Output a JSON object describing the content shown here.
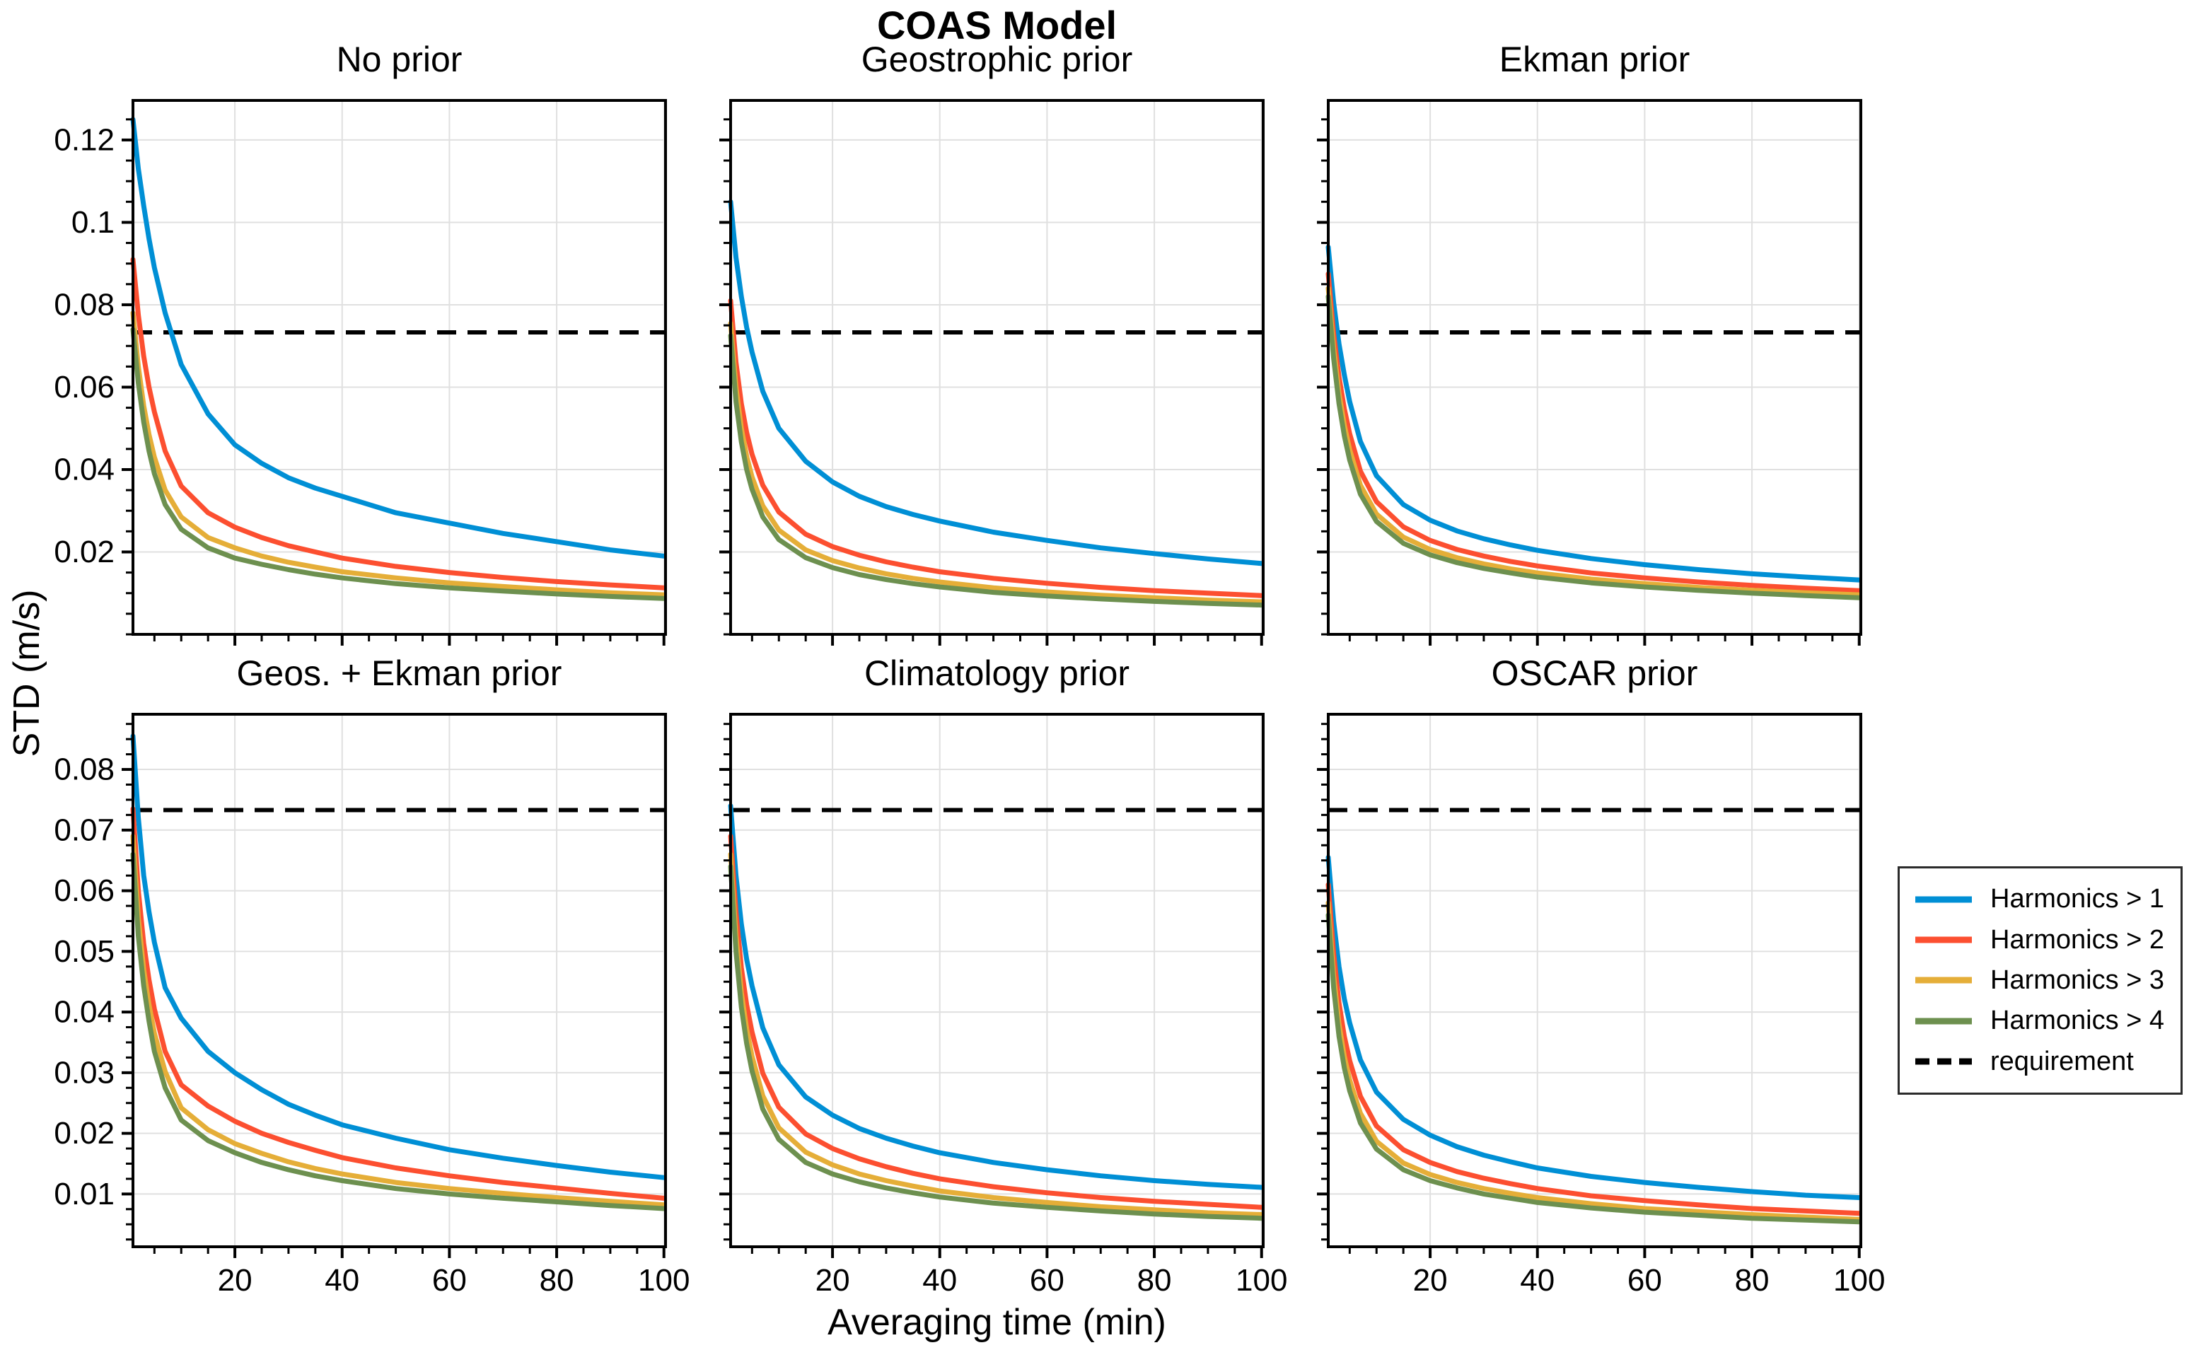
{
  "figure": {
    "suptitle": "COAS Model",
    "xlabel": "Averaging time (min)",
    "ylabel": "STD (m/s)",
    "background_color": "#ffffff",
    "grid_color": "#e0e0e0",
    "requirement_color": "#000000"
  },
  "legend": {
    "items": [
      {
        "label": "Harmonics > 1",
        "color": "#008fd5",
        "dash": "solid"
      },
      {
        "label": "Harmonics > 2",
        "color": "#fc4f30",
        "dash": "solid"
      },
      {
        "label": "Harmonics > 3",
        "color": "#e5ae38",
        "dash": "solid"
      },
      {
        "label": "Harmonics > 4",
        "color": "#6d904f",
        "dash": "solid"
      },
      {
        "label": "requirement",
        "color": "#000000",
        "dash": "dashed"
      }
    ]
  },
  "chart_data": [
    {
      "type": "line",
      "title": "No prior",
      "xlim": [
        1,
        100.3
      ],
      "xticks": [
        20,
        40,
        60,
        80,
        100
      ],
      "xtick_minor_step": 5,
      "xticklabels_visible": false,
      "ylim": [
        0.0,
        0.1296
      ],
      "yticks": [
        0.02,
        0.04,
        0.06,
        0.08,
        0.1,
        0.12
      ],
      "ytick_minor_step": 0.005,
      "grid": true,
      "requirement": 0.0733,
      "x": [
        1,
        2,
        3,
        4,
        5,
        7,
        10,
        15,
        20,
        25,
        30,
        35,
        40,
        50,
        60,
        70,
        80,
        90,
        100
      ],
      "series": [
        {
          "name": "Harmonics > 1",
          "color": "#008fd5",
          "values": [
            0.125,
            0.113,
            0.104,
            0.096,
            0.089,
            0.078,
            0.0655,
            0.0535,
            0.046,
            0.0415,
            0.038,
            0.0355,
            0.0335,
            0.0295,
            0.027,
            0.0245,
            0.0225,
            0.0205,
            0.019
          ]
        },
        {
          "name": "Harmonics > 2",
          "color": "#fc4f30",
          "values": [
            0.091,
            0.0775,
            0.0675,
            0.06,
            0.054,
            0.0445,
            0.036,
            0.0295,
            0.026,
            0.0235,
            0.0215,
            0.02,
            0.0185,
            0.0165,
            0.015,
            0.0138,
            0.0128,
            0.012,
            0.0113
          ]
        },
        {
          "name": "Harmonics > 3",
          "color": "#e5ae38",
          "values": [
            0.078,
            0.065,
            0.0555,
            0.0485,
            0.043,
            0.035,
            0.0285,
            0.0235,
            0.021,
            0.019,
            0.0175,
            0.0163,
            0.0152,
            0.0137,
            0.0125,
            0.0116,
            0.0108,
            0.0101,
            0.0096
          ]
        },
        {
          "name": "Harmonics > 4",
          "color": "#6d904f",
          "values": [
            0.074,
            0.061,
            0.0515,
            0.0445,
            0.039,
            0.0315,
            0.0255,
            0.021,
            0.0185,
            0.017,
            0.0157,
            0.0146,
            0.0137,
            0.0123,
            0.0113,
            0.0105,
            0.0098,
            0.0092,
            0.0087
          ]
        }
      ]
    },
    {
      "type": "line",
      "title": "Geostrophic prior",
      "xlim": [
        1,
        100.3
      ],
      "xticks": [
        20,
        40,
        60,
        80,
        100
      ],
      "xtick_minor_step": 5,
      "xticklabels_visible": false,
      "ylim": [
        0.0,
        0.1296
      ],
      "yticks": [
        0.02,
        0.04,
        0.06,
        0.08,
        0.1,
        0.12
      ],
      "ytick_minor_step": 0.005,
      "yticklabels_visible": false,
      "grid": true,
      "requirement": 0.0733,
      "x": [
        1,
        2,
        3,
        4,
        5,
        7,
        10,
        15,
        20,
        25,
        30,
        35,
        40,
        50,
        60,
        70,
        80,
        90,
        100
      ],
      "series": [
        {
          "name": "Harmonics > 1",
          "color": "#008fd5",
          "values": [
            0.105,
            0.0915,
            0.082,
            0.0745,
            0.0685,
            0.059,
            0.05,
            0.042,
            0.037,
            0.0335,
            0.031,
            0.0291,
            0.0275,
            0.0248,
            0.0228,
            0.021,
            0.0196,
            0.0183,
            0.0172
          ]
        },
        {
          "name": "Harmonics > 2",
          "color": "#fc4f30",
          "values": [
            0.081,
            0.066,
            0.056,
            0.049,
            0.0437,
            0.0362,
            0.0297,
            0.0243,
            0.0213,
            0.0192,
            0.0176,
            0.0163,
            0.0152,
            0.0136,
            0.0124,
            0.0114,
            0.0106,
            0.01,
            0.0094
          ]
        },
        {
          "name": "Harmonics > 3",
          "color": "#e5ae38",
          "values": [
            0.0755,
            0.06,
            0.05,
            0.0432,
            0.0382,
            0.0312,
            0.0253,
            0.0205,
            0.0179,
            0.0161,
            0.0147,
            0.0136,
            0.0127,
            0.0113,
            0.0103,
            0.0095,
            0.0089,
            0.0083,
            0.0079
          ]
        },
        {
          "name": "Harmonics > 4",
          "color": "#6d904f",
          "values": [
            0.0725,
            0.0565,
            0.0467,
            0.04,
            0.0352,
            0.0285,
            0.023,
            0.0186,
            0.0162,
            0.0145,
            0.0133,
            0.0123,
            0.0115,
            0.0102,
            0.0093,
            0.0086,
            0.008,
            0.0075,
            0.0071
          ]
        }
      ]
    },
    {
      "type": "line",
      "title": "Ekman prior",
      "xlim": [
        1,
        100.3
      ],
      "xticks": [
        20,
        40,
        60,
        80,
        100
      ],
      "xtick_minor_step": 5,
      "xticklabels_visible": false,
      "ylim": [
        0.0,
        0.1296
      ],
      "yticks": [
        0.02,
        0.04,
        0.06,
        0.08,
        0.1,
        0.12
      ],
      "ytick_minor_step": 0.005,
      "yticklabels_visible": false,
      "grid": true,
      "requirement": 0.0733,
      "x": [
        1,
        2,
        3,
        4,
        5,
        7,
        10,
        15,
        20,
        25,
        30,
        35,
        40,
        50,
        60,
        70,
        80,
        90,
        100
      ],
      "series": [
        {
          "name": "Harmonics > 1",
          "color": "#008fd5",
          "values": [
            0.094,
            0.0805,
            0.0705,
            0.063,
            0.0565,
            0.0468,
            0.0385,
            0.0315,
            0.0277,
            0.0251,
            0.0232,
            0.0217,
            0.0204,
            0.0184,
            0.0169,
            0.0157,
            0.0147,
            0.0139,
            0.0132
          ]
        },
        {
          "name": "Harmonics > 2",
          "color": "#fc4f30",
          "values": [
            0.0875,
            0.073,
            0.0625,
            0.0548,
            0.0487,
            0.0396,
            0.0322,
            0.0261,
            0.0228,
            0.0206,
            0.019,
            0.0177,
            0.0166,
            0.0149,
            0.0137,
            0.0127,
            0.0119,
            0.0112,
            0.0106
          ]
        },
        {
          "name": "Harmonics > 3",
          "color": "#e5ae38",
          "values": [
            0.084,
            0.0695,
            0.0585,
            0.0508,
            0.0448,
            0.0362,
            0.0292,
            0.0236,
            0.0206,
            0.0186,
            0.0171,
            0.0159,
            0.0149,
            0.0134,
            0.0123,
            0.0114,
            0.0107,
            0.0101,
            0.0096
          ]
        },
        {
          "name": "Harmonics > 4",
          "color": "#6d904f",
          "values": [
            0.082,
            0.067,
            0.056,
            0.0482,
            0.0423,
            0.034,
            0.0274,
            0.0221,
            0.0193,
            0.0174,
            0.016,
            0.0149,
            0.0139,
            0.0125,
            0.0115,
            0.0107,
            0.01,
            0.0094,
            0.0089
          ]
        }
      ]
    },
    {
      "type": "line",
      "title": "Geos. + Ekman prior",
      "xlim": [
        1,
        100.3
      ],
      "xticks": [
        20,
        40,
        60,
        80,
        100
      ],
      "xtick_minor_step": 5,
      "xticklabels_visible": true,
      "ylim": [
        0.0013,
        0.0891
      ],
      "yticks": [
        0.01,
        0.02,
        0.03,
        0.04,
        0.05,
        0.06,
        0.07,
        0.08
      ],
      "ytick_minor_step": 0.0025,
      "grid": true,
      "requirement": 0.0733,
      "x": [
        1,
        2,
        3,
        4,
        5,
        7,
        10,
        15,
        20,
        25,
        30,
        35,
        40,
        50,
        60,
        70,
        80,
        90,
        100
      ],
      "series": [
        {
          "name": "Harmonics > 1",
          "color": "#008fd5",
          "values": [
            0.0855,
            0.072,
            0.0625,
            0.0565,
            0.0515,
            0.044,
            0.039,
            0.0335,
            0.03,
            0.0272,
            0.0248,
            0.023,
            0.0214,
            0.0192,
            0.0173,
            0.0159,
            0.0147,
            0.0136,
            0.0127
          ]
        },
        {
          "name": "Harmonics > 2",
          "color": "#fc4f30",
          "values": [
            0.0735,
            0.06,
            0.0513,
            0.0453,
            0.0405,
            0.0335,
            0.028,
            0.0245,
            0.022,
            0.02,
            0.0185,
            0.0172,
            0.016,
            0.0143,
            0.013,
            0.0119,
            0.011,
            0.0101,
            0.0093
          ]
        },
        {
          "name": "Harmonics > 3",
          "color": "#e5ae38",
          "values": [
            0.069,
            0.0555,
            0.047,
            0.0412,
            0.0365,
            0.0302,
            0.0242,
            0.0206,
            0.0183,
            0.0167,
            0.0153,
            0.0142,
            0.0133,
            0.0119,
            0.0109,
            0.0101,
            0.0094,
            0.0088,
            0.0082
          ]
        },
        {
          "name": "Harmonics > 4",
          "color": "#6d904f",
          "values": [
            0.066,
            0.0525,
            0.0443,
            0.0385,
            0.0335,
            0.0275,
            0.0222,
            0.0188,
            0.0168,
            0.0152,
            0.014,
            0.013,
            0.0122,
            0.0109,
            0.01,
            0.0093,
            0.0087,
            0.0081,
            0.0076
          ]
        }
      ]
    },
    {
      "type": "line",
      "title": "Climatology prior",
      "xlim": [
        1,
        100.3
      ],
      "xticks": [
        20,
        40,
        60,
        80,
        100
      ],
      "xtick_minor_step": 5,
      "xticklabels_visible": true,
      "ylim": [
        0.0013,
        0.0891
      ],
      "yticks": [
        0.01,
        0.02,
        0.03,
        0.04,
        0.05,
        0.06,
        0.07,
        0.08
      ],
      "ytick_minor_step": 0.0025,
      "yticklabels_visible": false,
      "grid": true,
      "requirement": 0.0733,
      "x": [
        1,
        2,
        3,
        4,
        5,
        7,
        10,
        15,
        20,
        25,
        30,
        35,
        40,
        50,
        60,
        70,
        80,
        90,
        100
      ],
      "series": [
        {
          "name": "Harmonics > 1",
          "color": "#008fd5",
          "values": [
            0.074,
            0.0625,
            0.0545,
            0.0487,
            0.0443,
            0.0374,
            0.0313,
            0.026,
            0.023,
            0.0208,
            0.0192,
            0.0179,
            0.0168,
            0.0152,
            0.014,
            0.013,
            0.0122,
            0.0116,
            0.0111
          ]
        },
        {
          "name": "Harmonics > 2",
          "color": "#fc4f30",
          "values": [
            0.069,
            0.0565,
            0.0473,
            0.0412,
            0.0367,
            0.0299,
            0.0243,
            0.0199,
            0.0175,
            0.0158,
            0.0145,
            0.0134,
            0.0125,
            0.0112,
            0.0102,
            0.0094,
            0.0088,
            0.0083,
            0.0078
          ]
        },
        {
          "name": "Harmonics > 3",
          "color": "#e5ae38",
          "values": [
            0.066,
            0.0525,
            0.0432,
            0.0372,
            0.0327,
            0.0262,
            0.0209,
            0.0169,
            0.0148,
            0.0133,
            0.0122,
            0.0113,
            0.0105,
            0.0094,
            0.0086,
            0.0079,
            0.0074,
            0.0069,
            0.0066
          ]
        },
        {
          "name": "Harmonics > 4",
          "color": "#6d904f",
          "values": [
            0.064,
            0.05,
            0.0408,
            0.0348,
            0.0303,
            0.024,
            0.019,
            0.0152,
            0.0133,
            0.012,
            0.011,
            0.0102,
            0.0095,
            0.0085,
            0.0078,
            0.0072,
            0.0067,
            0.0063,
            0.006
          ]
        }
      ]
    },
    {
      "type": "line",
      "title": "OSCAR prior",
      "xlim": [
        1,
        100.3
      ],
      "xticks": [
        20,
        40,
        60,
        80,
        100
      ],
      "xtick_minor_step": 5,
      "xticklabels_visible": true,
      "ylim": [
        0.0013,
        0.0891
      ],
      "yticks": [
        0.01,
        0.02,
        0.03,
        0.04,
        0.05,
        0.06,
        0.07,
        0.08
      ],
      "ytick_minor_step": 0.0025,
      "yticklabels_visible": false,
      "grid": true,
      "requirement": 0.0733,
      "x": [
        1,
        2,
        3,
        4,
        5,
        7,
        10,
        15,
        20,
        25,
        30,
        35,
        40,
        50,
        60,
        70,
        80,
        90,
        100
      ],
      "series": [
        {
          "name": "Harmonics > 1",
          "color": "#008fd5",
          "values": [
            0.0655,
            0.055,
            0.0475,
            0.0422,
            0.0382,
            0.0321,
            0.0268,
            0.0223,
            0.0197,
            0.0178,
            0.0164,
            0.0153,
            0.0143,
            0.0129,
            0.0119,
            0.0111,
            0.0104,
            0.0098,
            0.0094
          ]
        },
        {
          "name": "Harmonics > 2",
          "color": "#fc4f30",
          "values": [
            0.061,
            0.0497,
            0.0415,
            0.036,
            0.032,
            0.0261,
            0.0212,
            0.0173,
            0.0152,
            0.0137,
            0.0126,
            0.0117,
            0.0109,
            0.0097,
            0.0089,
            0.0082,
            0.0076,
            0.0072,
            0.0068
          ]
        },
        {
          "name": "Harmonics > 3",
          "color": "#e5ae38",
          "values": [
            0.058,
            0.046,
            0.038,
            0.0327,
            0.0288,
            0.0233,
            0.0187,
            0.0151,
            0.0132,
            0.0119,
            0.0109,
            0.0101,
            0.0094,
            0.0084,
            0.0076,
            0.0071,
            0.0066,
            0.0062,
            0.0058
          ]
        },
        {
          "name": "Harmonics > 4",
          "color": "#6d904f",
          "values": [
            0.056,
            0.044,
            0.036,
            0.0308,
            0.027,
            0.0217,
            0.0174,
            0.014,
            0.0122,
            0.011,
            0.01,
            0.0093,
            0.0086,
            0.0077,
            0.007,
            0.0065,
            0.006,
            0.0057,
            0.0054
          ]
        }
      ]
    }
  ]
}
